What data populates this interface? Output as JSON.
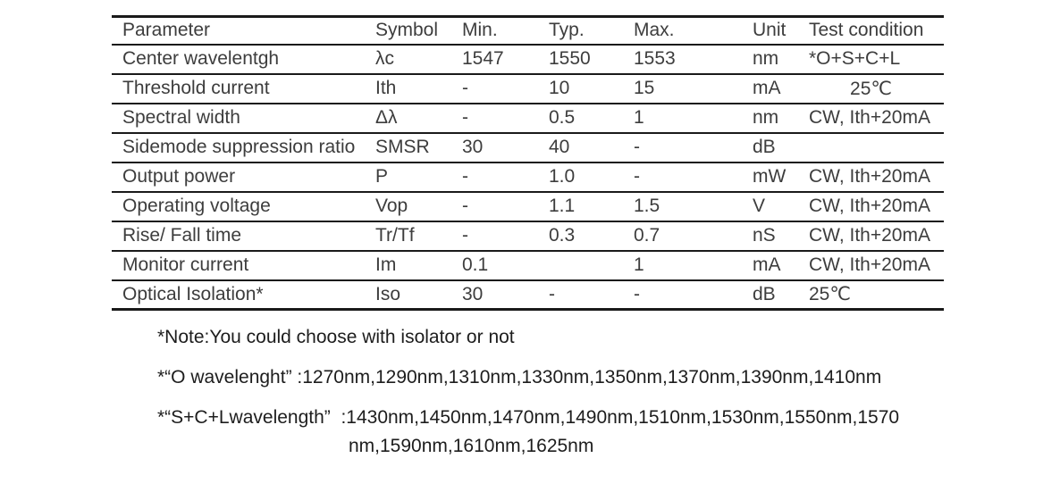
{
  "colors": {
    "background": "#ffffff",
    "table_text": "#3d3d3d",
    "note_text": "#1d1d1d",
    "rule": "#1a1a1a"
  },
  "table": {
    "columns": [
      {
        "key": "parameter",
        "label": "Parameter"
      },
      {
        "key": "symbol",
        "label": "Symbol"
      },
      {
        "key": "min",
        "label": "Min."
      },
      {
        "key": "typ",
        "label": "Typ."
      },
      {
        "key": "max",
        "label": "Max."
      },
      {
        "key": "unit",
        "label": "Unit"
      },
      {
        "key": "test_condition",
        "label": "Test condition"
      }
    ],
    "rows": [
      {
        "parameter": "Center wavelentgh",
        "symbol": "λc",
        "min": "1547",
        "typ": "1550",
        "max": "1553",
        "unit": "nm",
        "test_condition": "*O+S+C+L"
      },
      {
        "parameter": "Threshold current",
        "symbol": "Ith",
        "min": "-",
        "typ": "10",
        "max": "15",
        "unit": "mA",
        "test_condition": "25℃",
        "test_condition_align": "center"
      },
      {
        "parameter": "Spectral width",
        "symbol": "Δλ",
        "min": "-",
        "typ": "0.5",
        "max": "1",
        "unit": "nm",
        "test_condition": "CW, Ith+20mA"
      },
      {
        "parameter": "Sidemode suppression ratio",
        "symbol": "SMSR",
        "min": "30",
        "typ": "40",
        "max": "-",
        "unit": "dB",
        "test_condition": ""
      },
      {
        "parameter": "Output power",
        "symbol": "P",
        "min": "-",
        "typ": "1.0",
        "max": "-",
        "unit": "mW",
        "test_condition": "CW, Ith+20mA"
      },
      {
        "parameter": "Operating voltage",
        "symbol": "Vop",
        "min": "-",
        "typ": "1.1",
        "max": "1.5",
        "unit": "V",
        "test_condition": "CW, Ith+20mA"
      },
      {
        "parameter": "Rise/ Fall time",
        "symbol": "Tr/Tf",
        "min": "-",
        "typ": "0.3",
        "max": "0.7",
        "unit": "nS",
        "test_condition": "CW, Ith+20mA"
      },
      {
        "parameter": "Monitor current",
        "symbol": "Im",
        "min": "0.1",
        "typ": "",
        "max": "1",
        "unit": "mA",
        "test_condition": "CW, Ith+20mA"
      },
      {
        "parameter": "Optical Isolation*",
        "symbol": "Iso",
        "min": "30",
        "typ": "-",
        "max": "-",
        "unit": "dB",
        "test_condition": "25℃"
      }
    ]
  },
  "notes": {
    "note1": "*Note:You could choose with isolator or not",
    "note2": "*“O wavelenght” :1270nm,1290nm,1310nm,1330nm,1350nm,1370nm,1390nm,1410nm",
    "note3_line1": "*“S+C+Lwavelength”  :1430nm,1450nm,1470nm,1490nm,1510nm,1530nm,1550nm,1570",
    "note3_line2": "nm,1590nm,1610nm,1625nm"
  }
}
